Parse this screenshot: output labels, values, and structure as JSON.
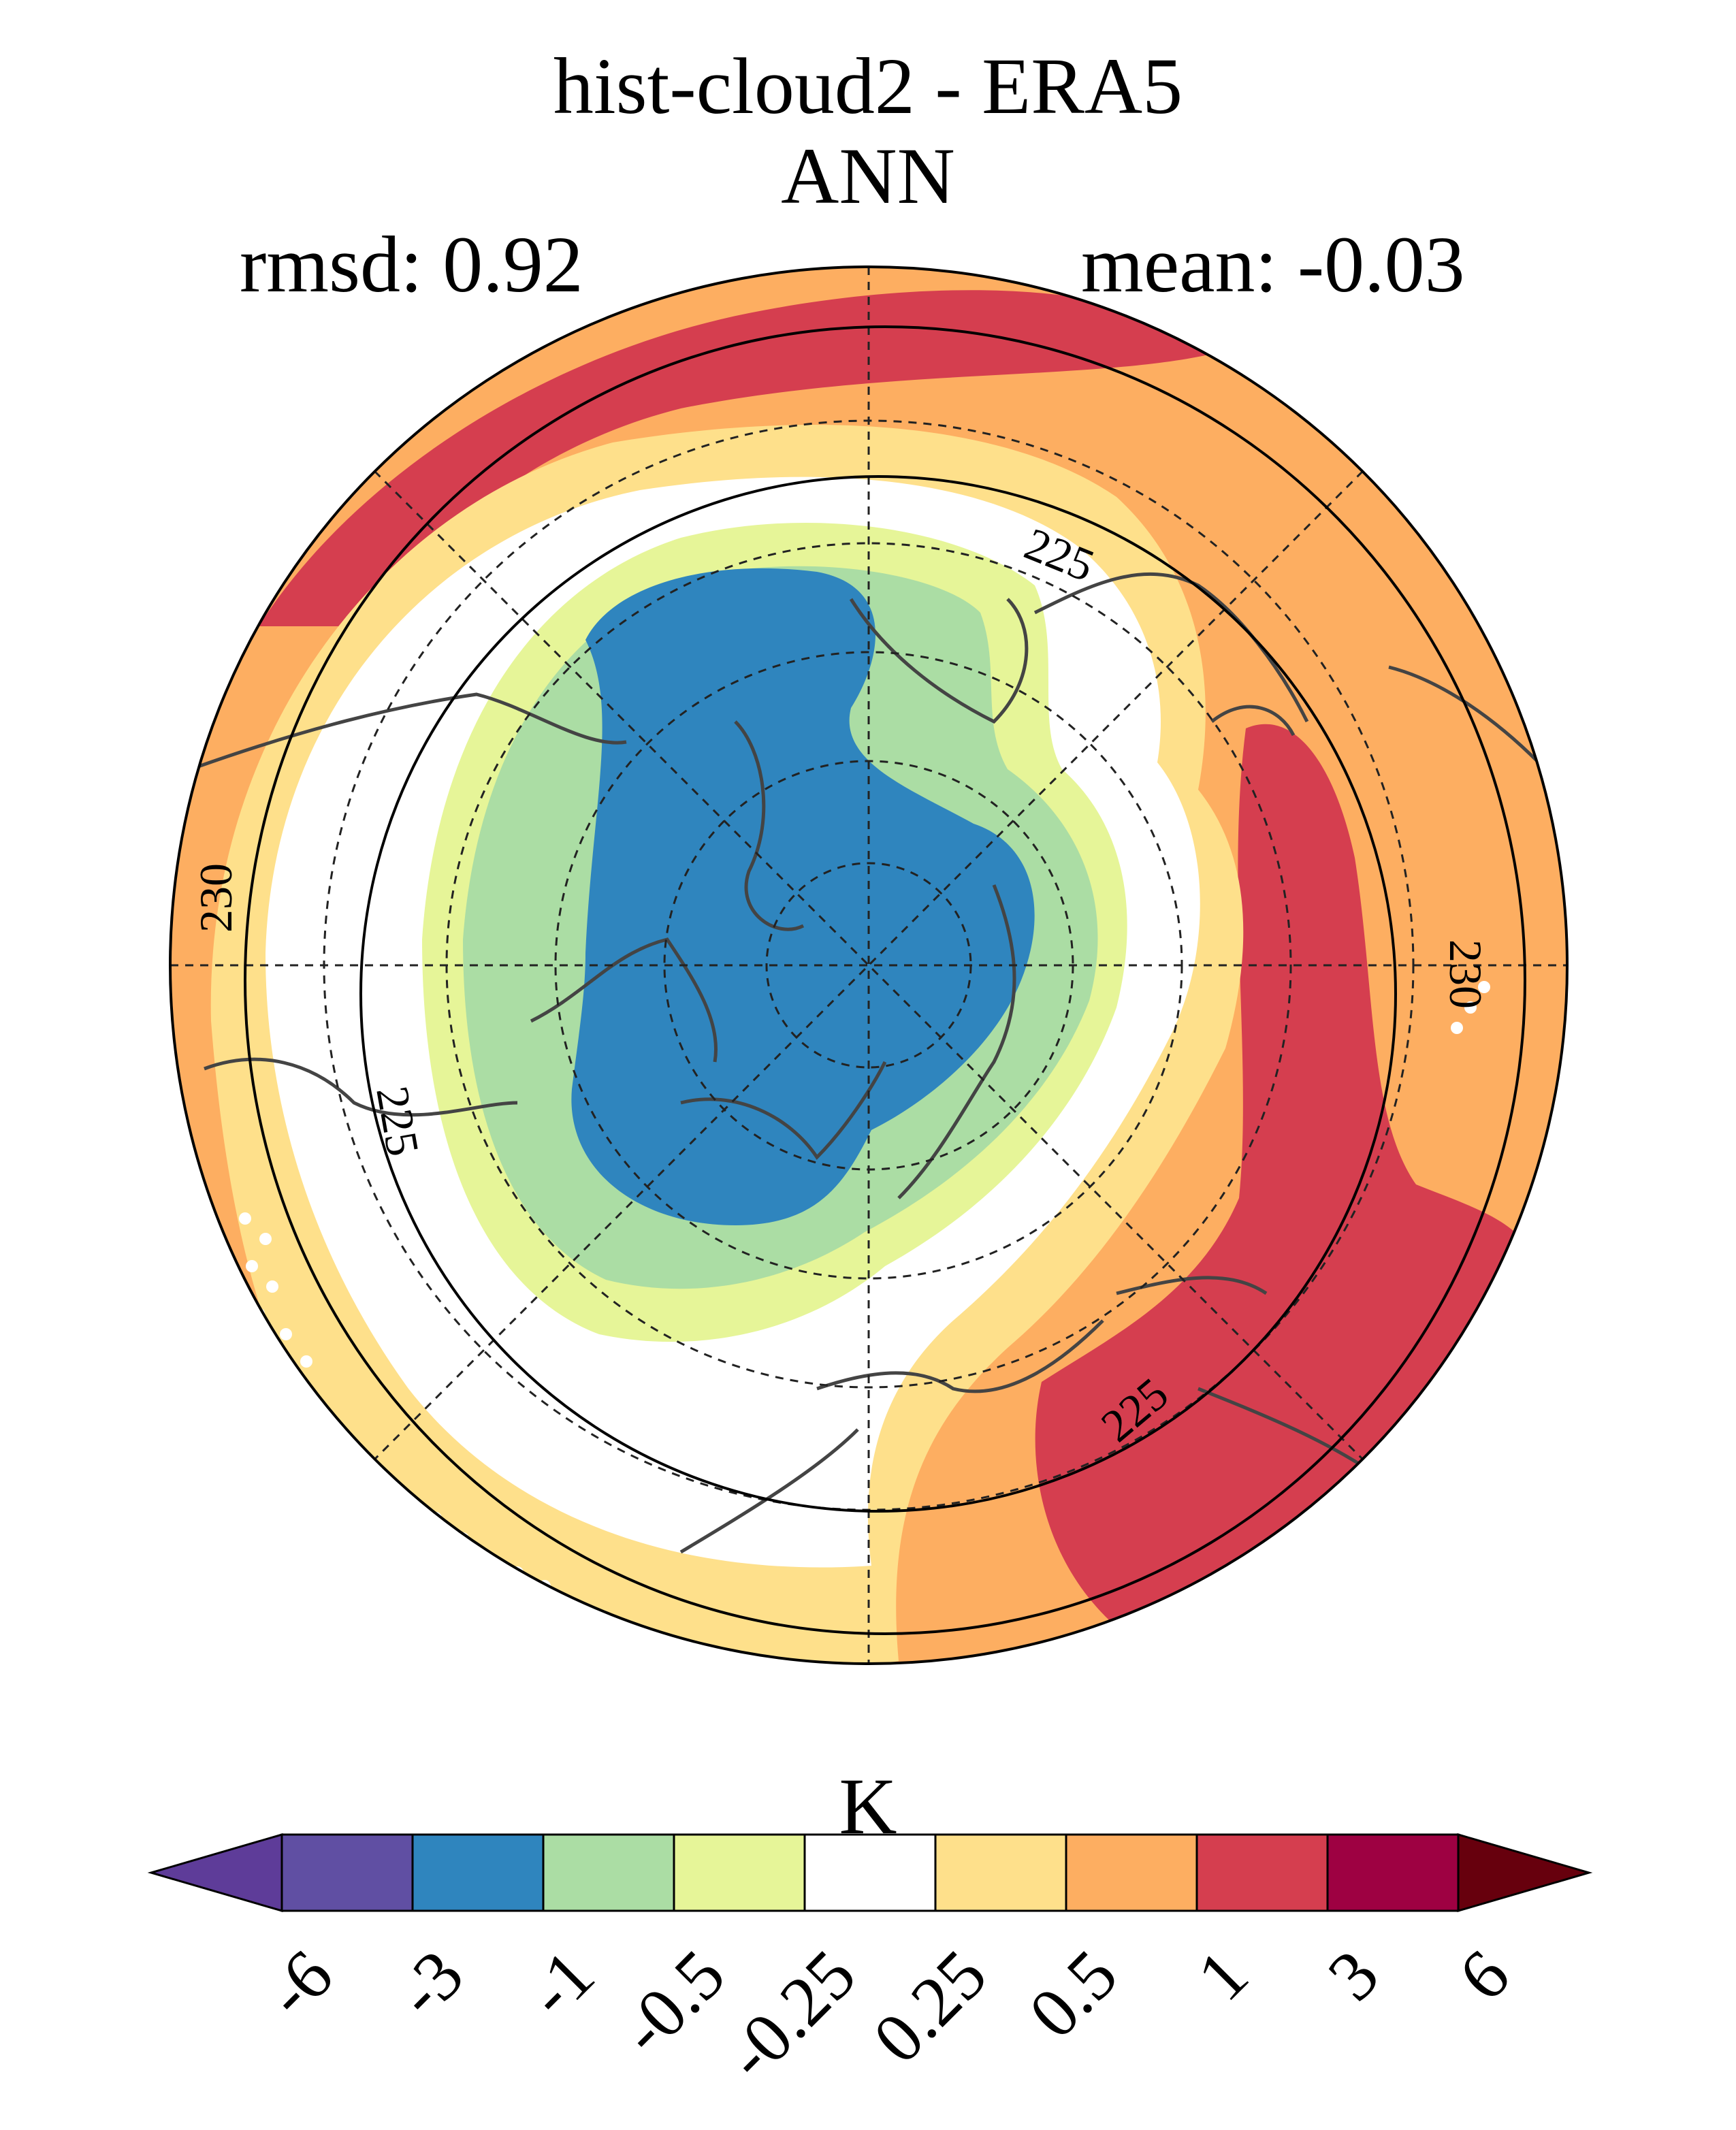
{
  "title": "hist-cloud2 - ERA5",
  "subtitle": "ANN",
  "stats": {
    "rmsd": "rmsd: 0.92",
    "mean": "mean: -0.03"
  },
  "contours": [
    {
      "label": "225",
      "value": 225
    },
    {
      "label": "225",
      "value": 225
    },
    {
      "label": "225",
      "value": 225
    },
    {
      "label": "230",
      "value": 230
    },
    {
      "label": "230",
      "value": 230
    }
  ],
  "colorbar": {
    "unit": "K",
    "levels": [
      "-6",
      "-3",
      "-1",
      "-0.5",
      "-0.25",
      "0.25",
      "0.5",
      "1",
      "3",
      "6"
    ],
    "colors": [
      "#5e3c99",
      "#604fa3",
      "#2f85be",
      "#abdda4",
      "#e6f598",
      "#ffffff",
      "#fee08b",
      "#fdae61",
      "#d53e4f",
      "#9e0142",
      "#67000d"
    ]
  },
  "map": {
    "projection": "north-polar-stereographic",
    "fill_colors": {
      "blue": "#2f85be",
      "green": "#abdda4",
      "yellow_green": "#e6f598",
      "white": "#ffffff",
      "light_orange": "#fee08b",
      "orange": "#fdae61",
      "red": "#d53e4f"
    }
  }
}
